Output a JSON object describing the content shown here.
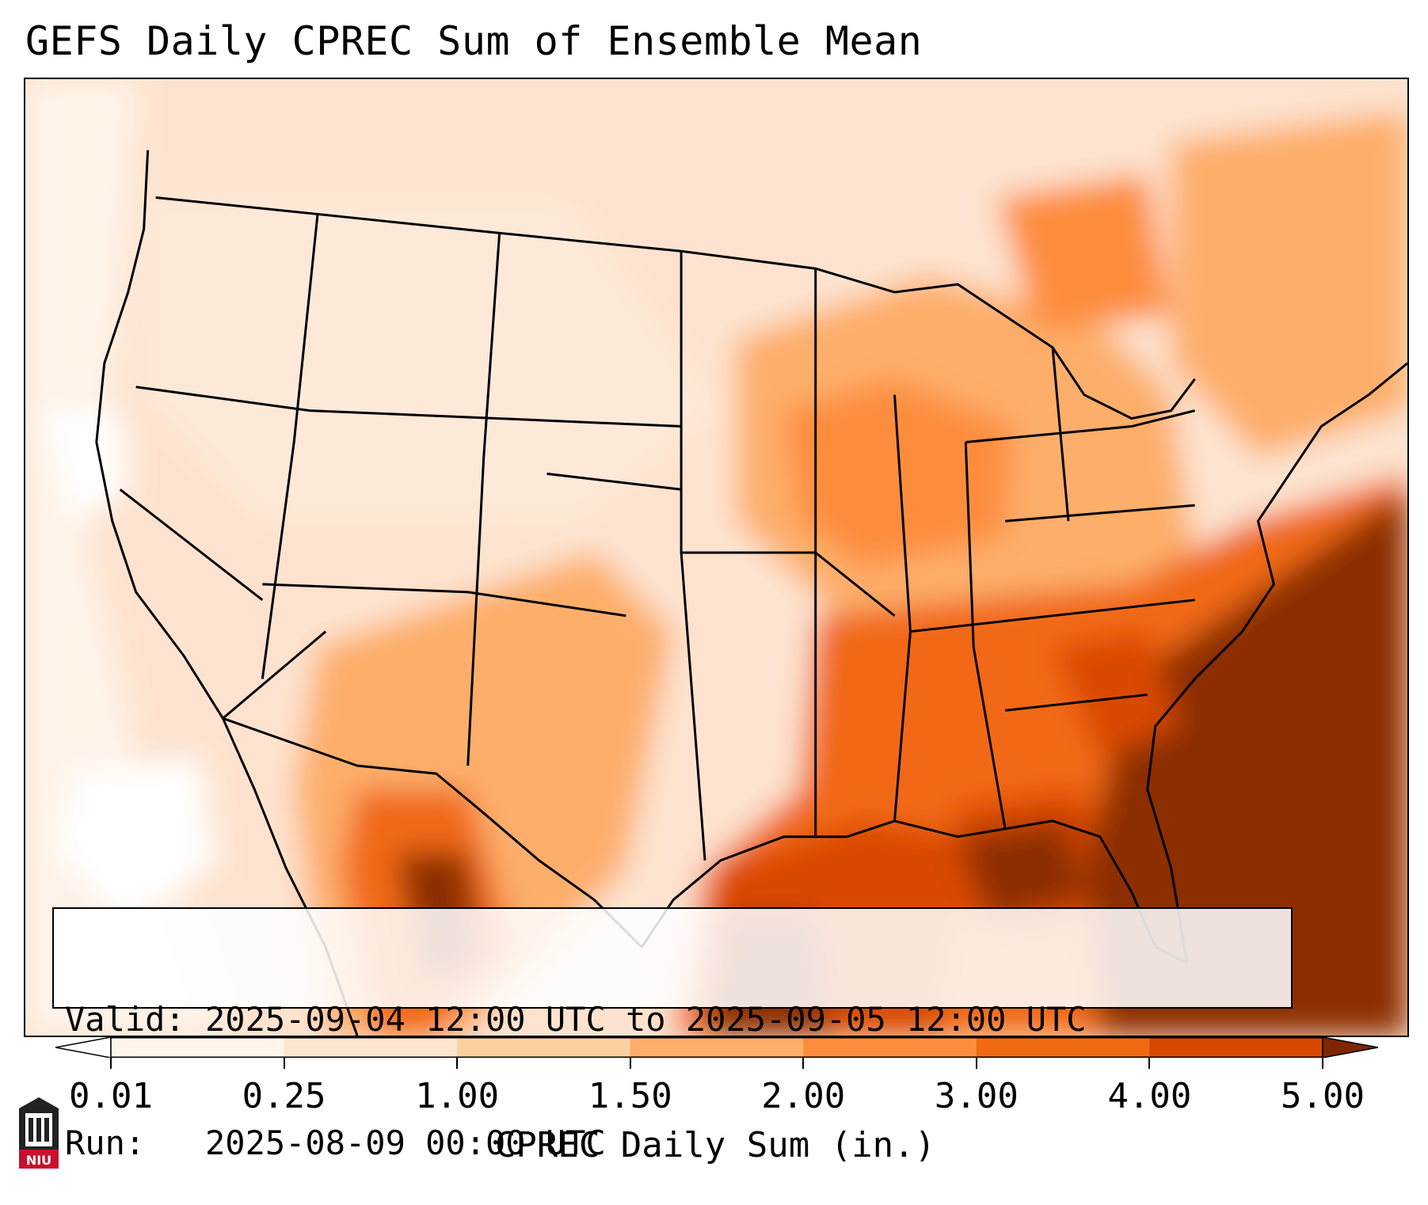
{
  "title": "GEFS Daily CPREC Sum of Ensemble Mean",
  "info": {
    "valid_line": "Valid: 2025-09-04 12:00 UTC to 2025-09-05 12:00 UTC",
    "run_line": "Run:   2025-08-09 00:00 UTC"
  },
  "colorbar": {
    "label": "CPREC Daily Sum (in.)",
    "ticks": [
      "0.01",
      "0.25",
      "1.00",
      "1.50",
      "2.00",
      "3.00",
      "4.00",
      "5.00"
    ],
    "colors": [
      "#fff5eb",
      "#fee6ce",
      "#fdd0a2",
      "#fdae6b",
      "#fd8d3c",
      "#f16913",
      "#d94801",
      "#8c2d04"
    ],
    "under_color": "#ffffff",
    "over_color": "#7f2704"
  },
  "logo": {
    "text": "NIU",
    "icon": "niu-logo-icon",
    "accent": "#c8102e"
  }
}
